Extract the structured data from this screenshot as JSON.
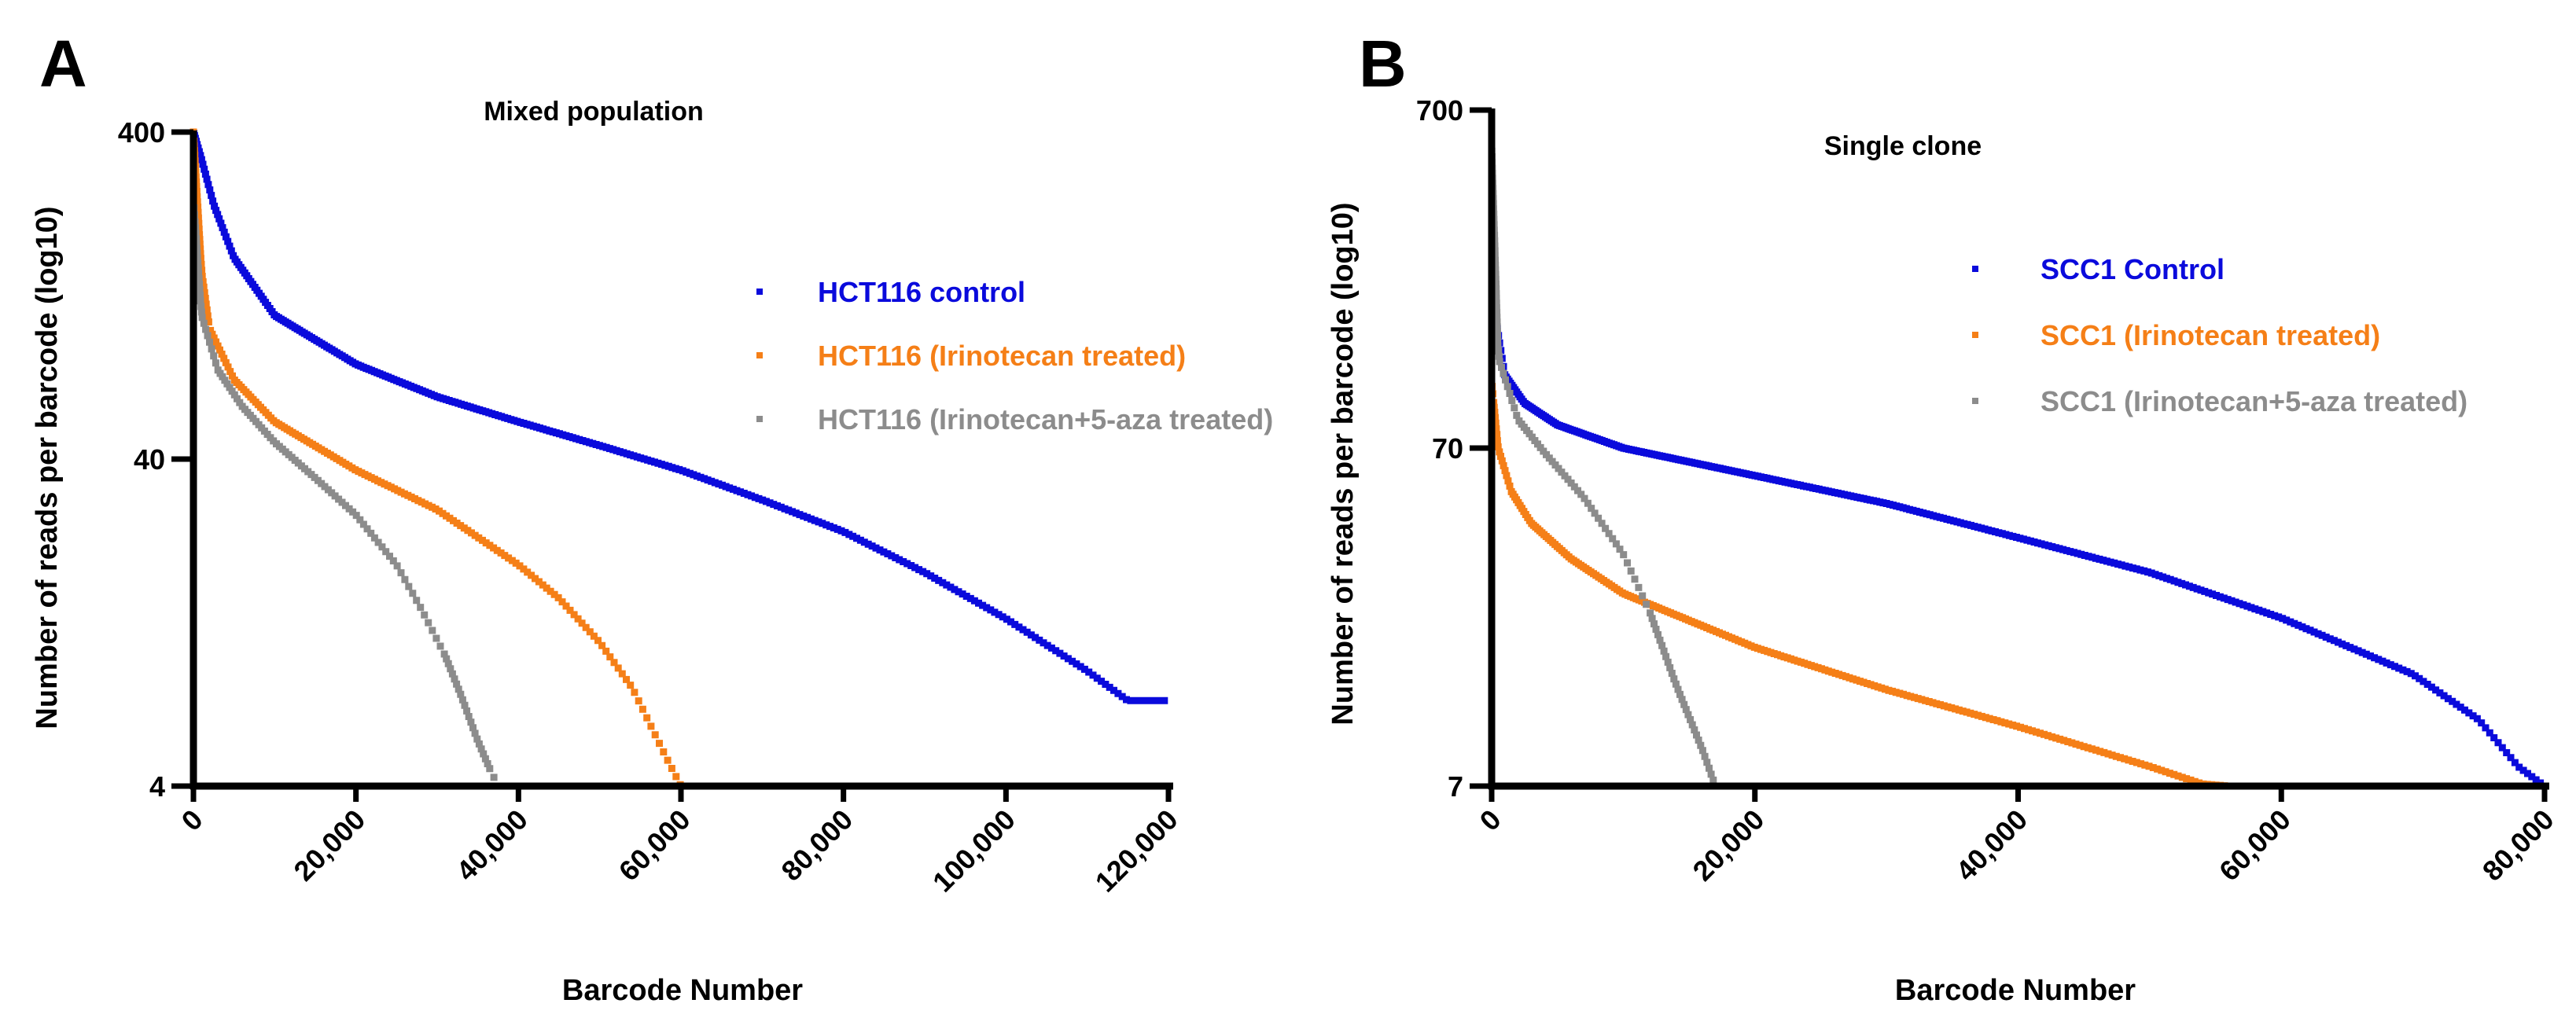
{
  "chart_data": [
    {
      "panel": "A",
      "type": "scatter",
      "title": "Mixed population",
      "xlabel": "Barcode Number",
      "ylabel": "Number of reads per barcode (log10)",
      "yscale": "log10",
      "xlim": [
        0,
        120000
      ],
      "ylim": [
        4,
        400
      ],
      "xticks": [
        0,
        20000,
        40000,
        60000,
        80000,
        100000,
        120000
      ],
      "xtick_labels": [
        "0",
        "20,000",
        "40,000",
        "60,000",
        "80,000",
        "100,000",
        "120,000"
      ],
      "yticks": [
        4,
        40,
        400
      ],
      "ytick_labels": [
        "4",
        "40",
        "400"
      ],
      "legend_position": "right",
      "series": [
        {
          "name": "HCT116 control",
          "color": "#0a0adc",
          "x": [
            0,
            1000,
            2500,
            5000,
            10000,
            20000,
            30000,
            40000,
            50000,
            60000,
            70000,
            80000,
            90000,
            100000,
            110000,
            115000,
            119500
          ],
          "y": [
            400,
            330,
            240,
            165,
            110,
            78,
            62,
            52,
            44,
            37,
            30,
            24,
            18,
            13,
            9,
            7.3,
            7.3
          ]
        },
        {
          "name": "HCT116 (Irinotecan treated)",
          "color": "#f57f17",
          "x": [
            0,
            1000,
            2000,
            5000,
            10000,
            20000,
            30000,
            40000,
            45000,
            50000,
            54000,
            58000,
            60000,
            62000
          ],
          "y": [
            400,
            150,
            100,
            70,
            52,
            37,
            28,
            19,
            15,
            11,
            8,
            5,
            4,
            4
          ]
        },
        {
          "name": "HCT116 (Irinotecan+5-aza treated)",
          "color": "#8c8c8c",
          "x": [
            0,
            1000,
            3000,
            6000,
            10000,
            15000,
            20000,
            25000,
            28000,
            31000,
            33000,
            35000,
            36500,
            37500
          ],
          "y": [
            250,
            110,
            75,
            58,
            45,
            35,
            27,
            19,
            14,
            10,
            7.5,
            5.5,
            4.5,
            4
          ]
        }
      ]
    },
    {
      "panel": "B",
      "type": "scatter",
      "title": "Single clone",
      "xlabel": "Barcode Number",
      "ylabel": "Number of reads per barcode (log10)",
      "yscale": "log10",
      "xlim": [
        0,
        80000
      ],
      "ylim": [
        7,
        700
      ],
      "xticks": [
        0,
        20000,
        40000,
        60000,
        80000
      ],
      "xtick_labels": [
        "0",
        "20,000",
        "40,000",
        "60,000",
        "80,000"
      ],
      "yticks": [
        7,
        70,
        700
      ],
      "ytick_labels": [
        "7",
        "70",
        "700"
      ],
      "legend_position": "right",
      "series": [
        {
          "name": "SCC1 Control",
          "color": "#0a0adc",
          "x": [
            0,
            300,
            1000,
            2500,
            5000,
            10000,
            20000,
            30000,
            40000,
            50000,
            60000,
            70000,
            75000,
            78000,
            80000
          ],
          "y": [
            400,
            170,
            115,
            95,
            82,
            70,
            58,
            48,
            38,
            30,
            22,
            15,
            11,
            8,
            7
          ]
        },
        {
          "name": "SCC1 (Irinotecan treated)",
          "color": "#f57f17",
          "x": [
            0,
            500,
            1500,
            3000,
            6000,
            10000,
            20000,
            30000,
            40000,
            50000,
            54000,
            56000
          ],
          "y": [
            110,
            70,
            52,
            42,
            33,
            26,
            18,
            13.5,
            10.5,
            8,
            7.1,
            7
          ]
        },
        {
          "name": "SCC1 (Irinotecan+5-aza treated)",
          "color": "#8c8c8c",
          "x": [
            0,
            500,
            2000,
            4000,
            7000,
            10000,
            12000,
            14000,
            16000,
            17000
          ],
          "y": [
            550,
            130,
            85,
            68,
            50,
            34,
            23,
            14,
            9,
            7
          ]
        }
      ]
    }
  ]
}
